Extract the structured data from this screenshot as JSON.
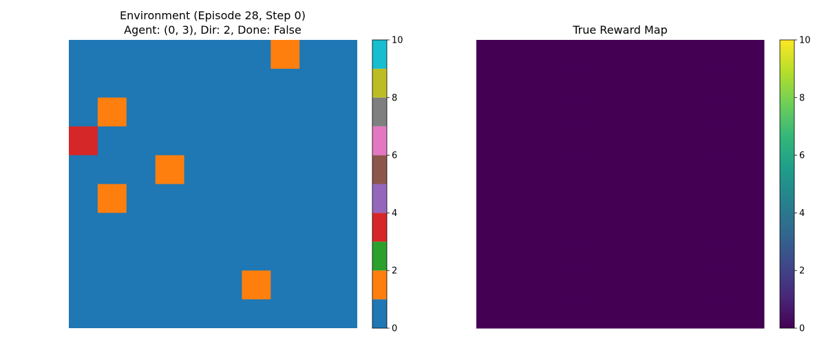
{
  "chart_data": [
    {
      "type": "heatmap",
      "title_line1": "Environment (Episode 28, Step 0)",
      "title_line2": "Agent: (0, 3), Dir: 2, Done: False",
      "grid_rows": 10,
      "grid_cols": 10,
      "background_value": 0,
      "cells": [
        {
          "row": 0,
          "col": 7,
          "value": 1
        },
        {
          "row": 2,
          "col": 1,
          "value": 1
        },
        {
          "row": 3,
          "col": 0,
          "value": 3
        },
        {
          "row": 4,
          "col": 3,
          "value": 1
        },
        {
          "row": 5,
          "col": 1,
          "value": 1
        },
        {
          "row": 8,
          "col": 6,
          "value": 1
        }
      ],
      "colormap": "tab10",
      "vmin": 0,
      "vmax": 10,
      "colorbar_bins": [
        "#1f77b4",
        "#ff7f0e",
        "#2ca02c",
        "#d62728",
        "#9467bd",
        "#8c564b",
        "#e377c2",
        "#7f7f7f",
        "#bcbd22",
        "#17becf"
      ],
      "colorbar_ticks": [
        "0",
        "2",
        "4",
        "6",
        "8",
        "10"
      ]
    },
    {
      "type": "heatmap",
      "title": "True Reward Map",
      "grid_rows": 10,
      "grid_cols": 10,
      "fill_value": 0,
      "fill_color": "#440154",
      "colormap": "viridis",
      "vmin": 0,
      "vmax": 10,
      "colorbar_stops": [
        "#440154",
        "#482878",
        "#3e4989",
        "#31688e",
        "#26828e",
        "#1f9e89",
        "#35b779",
        "#6ece58",
        "#b5de2b",
        "#fde725"
      ],
      "colorbar_ticks": [
        "0",
        "2",
        "4",
        "6",
        "8",
        "10"
      ]
    }
  ]
}
